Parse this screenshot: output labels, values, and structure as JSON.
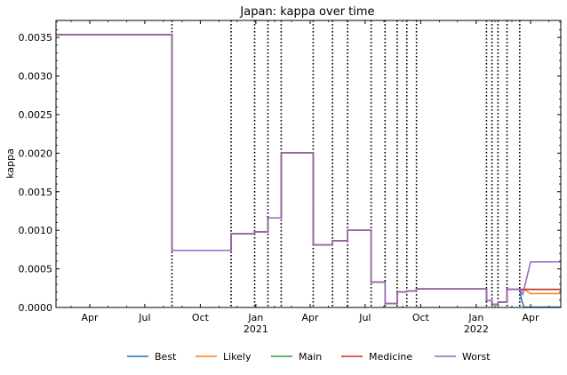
{
  "chart_data": {
    "type": "line",
    "title": "Japan: kappa over time",
    "xlabel": "",
    "ylabel": "kappa",
    "xlim": [
      "2020-02-05",
      "2022-05-21"
    ],
    "ylim": [
      0,
      0.00372
    ],
    "grid": false,
    "legend_position": "bottom-center",
    "y_ticks": [
      {
        "value": 0,
        "label": "0.0000"
      },
      {
        "value": 0.0005,
        "label": "0.0005"
      },
      {
        "value": 0.001,
        "label": "0.0010"
      },
      {
        "value": 0.0015,
        "label": "0.0015"
      },
      {
        "value": 0.002,
        "label": "0.0020"
      },
      {
        "value": 0.0025,
        "label": "0.0025"
      },
      {
        "value": 0.003,
        "label": "0.0030"
      },
      {
        "value": 0.0035,
        "label": "0.0035"
      }
    ],
    "x_ticks": [
      {
        "date": "2020-04-01",
        "label": "Apr",
        "sublabel": ""
      },
      {
        "date": "2020-07-01",
        "label": "Jul",
        "sublabel": ""
      },
      {
        "date": "2020-10-01",
        "label": "Oct",
        "sublabel": ""
      },
      {
        "date": "2021-01-01",
        "label": "Jan",
        "sublabel": "2021"
      },
      {
        "date": "2021-04-01",
        "label": "Apr",
        "sublabel": ""
      },
      {
        "date": "2021-07-01",
        "label": "Jul",
        "sublabel": ""
      },
      {
        "date": "2021-10-01",
        "label": "Oct",
        "sublabel": ""
      },
      {
        "date": "2022-01-01",
        "label": "Jan",
        "sublabel": "2022"
      },
      {
        "date": "2022-04-01",
        "label": "Apr",
        "sublabel": ""
      }
    ],
    "change_dates": [
      "2020-08-15",
      "2020-11-21",
      "2020-12-30",
      "2021-01-21",
      "2021-02-12",
      "2021-04-06",
      "2021-05-08",
      "2021-06-02",
      "2021-07-11",
      "2021-08-03",
      "2021-08-23",
      "2021-09-08",
      "2021-09-24",
      "2022-01-18",
      "2022-01-27",
      "2022-02-06",
      "2022-02-21",
      "2022-03-14"
    ],
    "series": [
      {
        "name": "Best",
        "color": "#1f77b4",
        "x": [
          "2020-02-05",
          "2020-08-15",
          "2020-08-15",
          "2020-11-21",
          "2020-11-21",
          "2020-12-30",
          "2020-12-30",
          "2021-01-21",
          "2021-01-21",
          "2021-02-12",
          "2021-02-12",
          "2021-04-06",
          "2021-04-06",
          "2021-05-08",
          "2021-05-08",
          "2021-06-02",
          "2021-06-02",
          "2021-07-11",
          "2021-07-11",
          "2021-08-03",
          "2021-08-03",
          "2021-08-23",
          "2021-08-23",
          "2021-09-08",
          "2021-09-08",
          "2021-09-24",
          "2021-09-24",
          "2022-01-18",
          "2022-01-18",
          "2022-01-27",
          "2022-01-27",
          "2022-02-06",
          "2022-02-06",
          "2022-02-21",
          "2022-02-21",
          "2022-03-14",
          "2022-03-17",
          "2022-03-21",
          "2022-05-21"
        ],
        "values": [
          0.003535,
          0.003535,
          0.00074,
          0.00074,
          0.000955,
          0.000955,
          0.00098,
          0.00098,
          0.00116,
          0.00116,
          0.002005,
          0.002005,
          0.00081,
          0.00081,
          0.000865,
          0.000865,
          0.001,
          0.001,
          0.00033,
          0.00033,
          5e-05,
          5e-05,
          0.0002,
          0.0002,
          0.000215,
          0.000215,
          0.00024,
          0.00024,
          9e-05,
          9e-05,
          4e-05,
          4e-05,
          7e-05,
          7e-05,
          0.000235,
          0.000235,
          0.0001,
          5e-06,
          5e-06
        ]
      },
      {
        "name": "Likely",
        "color": "#ff7f0e",
        "x": [
          "2020-02-05",
          "2020-08-15",
          "2020-08-15",
          "2020-11-21",
          "2020-11-21",
          "2020-12-30",
          "2020-12-30",
          "2021-01-21",
          "2021-01-21",
          "2021-02-12",
          "2021-02-12",
          "2021-04-06",
          "2021-04-06",
          "2021-05-08",
          "2021-05-08",
          "2021-06-02",
          "2021-06-02",
          "2021-07-11",
          "2021-07-11",
          "2021-08-03",
          "2021-08-03",
          "2021-08-23",
          "2021-08-23",
          "2021-09-08",
          "2021-09-08",
          "2021-09-24",
          "2021-09-24",
          "2022-01-18",
          "2022-01-18",
          "2022-01-27",
          "2022-01-27",
          "2022-02-06",
          "2022-02-06",
          "2022-02-21",
          "2022-02-21",
          "2022-03-14",
          "2022-03-24",
          "2022-04-01",
          "2022-05-21"
        ],
        "values": [
          0.003535,
          0.003535,
          0.00074,
          0.00074,
          0.000955,
          0.000955,
          0.00098,
          0.00098,
          0.00116,
          0.00116,
          0.002005,
          0.002005,
          0.00081,
          0.00081,
          0.000865,
          0.000865,
          0.001,
          0.001,
          0.00033,
          0.00033,
          5e-05,
          5e-05,
          0.0002,
          0.0002,
          0.000215,
          0.000215,
          0.00024,
          0.00024,
          9e-05,
          9e-05,
          4e-05,
          4e-05,
          7e-05,
          7e-05,
          0.000235,
          0.000235,
          0.00022,
          0.00018,
          0.00018
        ]
      },
      {
        "name": "Main",
        "color": "#2ca02c",
        "x": [
          "2020-02-05",
          "2020-08-15",
          "2020-08-15",
          "2020-11-21",
          "2020-11-21",
          "2020-12-30",
          "2020-12-30",
          "2021-01-21",
          "2021-01-21",
          "2021-02-12",
          "2021-02-12",
          "2021-04-06",
          "2021-04-06",
          "2021-05-08",
          "2021-05-08",
          "2021-06-02",
          "2021-06-02",
          "2021-07-11",
          "2021-07-11",
          "2021-08-03",
          "2021-08-03",
          "2021-08-23",
          "2021-08-23",
          "2021-09-08",
          "2021-09-08",
          "2021-09-24",
          "2021-09-24",
          "2022-01-18",
          "2022-01-18",
          "2022-01-27",
          "2022-01-27",
          "2022-02-06",
          "2022-02-06",
          "2022-02-21",
          "2022-02-21",
          "2022-03-14",
          "2022-05-21"
        ],
        "values": [
          0.003535,
          0.003535,
          0.00074,
          0.00074,
          0.000955,
          0.000955,
          0.00098,
          0.00098,
          0.00116,
          0.00116,
          0.002005,
          0.002005,
          0.00081,
          0.00081,
          0.000865,
          0.000865,
          0.001,
          0.001,
          0.00033,
          0.00033,
          5e-05,
          5e-05,
          0.0002,
          0.0002,
          0.000215,
          0.000215,
          0.00024,
          0.00024,
          9e-05,
          9e-05,
          4e-05,
          4e-05,
          7e-05,
          7e-05,
          0.000235,
          0.000235,
          0.000235
        ]
      },
      {
        "name": "Medicine",
        "color": "#d62728",
        "x": [
          "2020-02-05",
          "2020-08-15",
          "2020-08-15",
          "2020-11-21",
          "2020-11-21",
          "2020-12-30",
          "2020-12-30",
          "2021-01-21",
          "2021-01-21",
          "2021-02-12",
          "2021-02-12",
          "2021-04-06",
          "2021-04-06",
          "2021-05-08",
          "2021-05-08",
          "2021-06-02",
          "2021-06-02",
          "2021-07-11",
          "2021-07-11",
          "2021-08-03",
          "2021-08-03",
          "2021-08-23",
          "2021-08-23",
          "2021-09-08",
          "2021-09-08",
          "2021-09-24",
          "2021-09-24",
          "2022-01-18",
          "2022-01-18",
          "2022-01-27",
          "2022-01-27",
          "2022-02-06",
          "2022-02-06",
          "2022-02-21",
          "2022-02-21",
          "2022-03-14",
          "2022-05-21"
        ],
        "values": [
          0.003535,
          0.003535,
          0.00074,
          0.00074,
          0.000955,
          0.000955,
          0.00098,
          0.00098,
          0.00116,
          0.00116,
          0.002005,
          0.002005,
          0.00081,
          0.00081,
          0.000865,
          0.000865,
          0.001,
          0.001,
          0.00033,
          0.00033,
          5e-05,
          5e-05,
          0.0002,
          0.0002,
          0.000215,
          0.000215,
          0.00024,
          0.00024,
          9e-05,
          9e-05,
          4e-05,
          4e-05,
          7e-05,
          7e-05,
          0.000235,
          0.000235,
          0.000235
        ]
      },
      {
        "name": "Worst",
        "color": "#9467bd",
        "x": [
          "2020-02-05",
          "2020-08-15",
          "2020-08-15",
          "2020-11-21",
          "2020-11-21",
          "2020-12-30",
          "2020-12-30",
          "2021-01-21",
          "2021-01-21",
          "2021-02-12",
          "2021-02-12",
          "2021-04-06",
          "2021-04-06",
          "2021-05-08",
          "2021-05-08",
          "2021-06-02",
          "2021-06-02",
          "2021-07-11",
          "2021-07-11",
          "2021-08-03",
          "2021-08-03",
          "2021-08-23",
          "2021-08-23",
          "2021-09-08",
          "2021-09-08",
          "2021-09-24",
          "2021-09-24",
          "2022-01-18",
          "2022-01-18",
          "2022-01-27",
          "2022-01-27",
          "2022-02-06",
          "2022-02-06",
          "2022-02-21",
          "2022-02-21",
          "2022-03-14",
          "2022-03-19",
          "2022-04-01",
          "2022-05-21"
        ],
        "values": [
          0.003535,
          0.003535,
          0.00074,
          0.00074,
          0.000955,
          0.000955,
          0.00098,
          0.00098,
          0.00116,
          0.00116,
          0.002005,
          0.002005,
          0.00081,
          0.00081,
          0.000865,
          0.000865,
          0.001,
          0.001,
          0.00033,
          0.00033,
          5e-05,
          5e-05,
          0.0002,
          0.0002,
          0.000215,
          0.000215,
          0.00024,
          0.00024,
          9e-05,
          9e-05,
          4e-05,
          4e-05,
          7e-05,
          7e-05,
          0.000235,
          0.000235,
          0.00017,
          0.00059,
          0.00059
        ]
      }
    ]
  }
}
